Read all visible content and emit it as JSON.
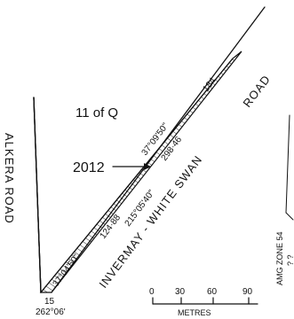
{
  "plan": {
    "lot_label": "11 of Q",
    "parcel_label": "2012",
    "roads": {
      "alkera": "ALKERA   ROAD",
      "invermay": "INVERMAY  -  WHITE SWAN",
      "road_suffix": "ROAD"
    },
    "bearings": {
      "upper": "37°09'50\"",
      "lower_left": "37°04'50\"",
      "middle": "215°05'40\"",
      "corner": "262°06'"
    },
    "distances": {
      "upper_end": "184",
      "upper": "298·46",
      "lower": "124·88",
      "corner": "15"
    },
    "scale": {
      "ticks": [
        "0",
        "30",
        "60",
        "90"
      ],
      "unit": "METRES"
    },
    "zone": {
      "label": "AMG ZONE 54",
      "cut_text": "? ?"
    },
    "colors": {
      "ink": "#111111",
      "paper": "#ffffff"
    }
  }
}
